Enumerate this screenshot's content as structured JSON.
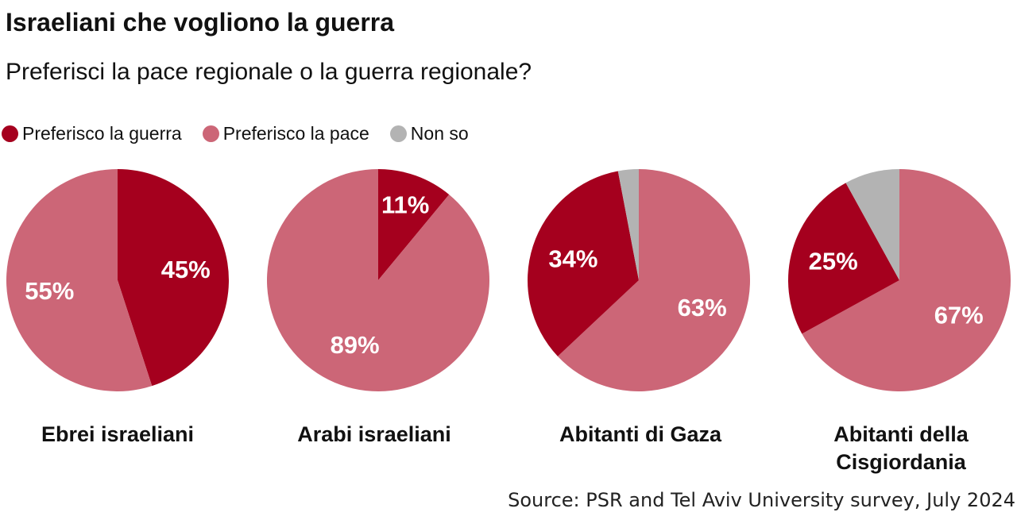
{
  "title": "Israeliani che vogliono la guerra",
  "subtitle": "Preferisci la pace regionale o la guerra regionale?",
  "legend": [
    {
      "label": "Preferisco la guerra",
      "color": "#a5001e"
    },
    {
      "label": "Preferisco la pace",
      "color": "#cc6677"
    },
    {
      "label": "Non so",
      "color": "#b3b3b3"
    }
  ],
  "source": "Source: PSR and Tel Aviv University survey, July 2024",
  "chart_data": {
    "type": "pie",
    "series_names": [
      "Preferisco la guerra",
      "Preferisco la pace",
      "Non so"
    ],
    "colors": {
      "Preferisco la guerra": "#a5001e",
      "Preferisco la pace": "#cc6677",
      "Non so": "#b3b3b3"
    },
    "pies": [
      {
        "category": "Ebrei israeliani",
        "slices": [
          {
            "name": "Preferisco la guerra",
            "value": 45,
            "label": "45%"
          },
          {
            "name": "Preferisco la pace",
            "value": 55,
            "label": "55%"
          }
        ]
      },
      {
        "category": "Arabi israeliani",
        "slices": [
          {
            "name": "Preferisco la guerra",
            "value": 11,
            "label": "11%"
          },
          {
            "name": "Preferisco la pace",
            "value": 89,
            "label": "89%"
          }
        ]
      },
      {
        "category": "Abitanti di Gaza",
        "slices": [
          {
            "name": "Preferisco la pace",
            "value": 63,
            "label": "63%"
          },
          {
            "name": "Preferisco la guerra",
            "value": 34,
            "label": "34%"
          },
          {
            "name": "Non so",
            "value": 3,
            "label": ""
          }
        ]
      },
      {
        "category": "Abitanti della\nCisgiordania",
        "slices": [
          {
            "name": "Preferisco la pace",
            "value": 67,
            "label": "67%"
          },
          {
            "name": "Preferisco la guerra",
            "value": 25,
            "label": "25%"
          },
          {
            "name": "Non so",
            "value": 8,
            "label": ""
          }
        ]
      }
    ]
  }
}
